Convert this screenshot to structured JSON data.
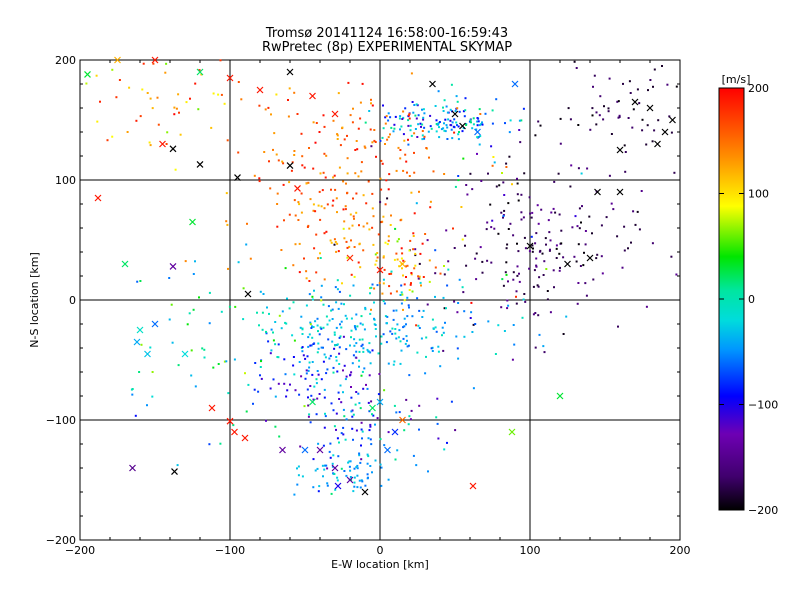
{
  "chart_data": {
    "type": "scatter",
    "title": "Tromsø 20141124 16:58:00-16:59:43",
    "subtitle": "RwPretec (8p) EXPERIMENTAL SKYMAP",
    "xlabel": "E-W location [km]",
    "ylabel": "N-S location [km]",
    "xlim": [
      -200,
      200
    ],
    "ylim": [
      -200,
      200
    ],
    "x_ticks": [
      "-200",
      "-100",
      "0",
      "100",
      "200"
    ],
    "y_ticks": [
      "-200",
      "-100",
      "0",
      "100",
      "200"
    ],
    "grid": true,
    "colorbar": {
      "label": "[m/s]",
      "range": [
        -200,
        200
      ],
      "ticks": [
        "-200",
        "-100",
        "0",
        "100",
        "200"
      ],
      "colormap": "rainbow"
    },
    "clusters": [
      {
        "cx": 40,
        "cy": 148,
        "sx": 22,
        "sy": 10,
        "n": 150,
        "vmin": -120,
        "vmax": 20
      },
      {
        "cx": -20,
        "cy": 130,
        "sx": 35,
        "sy": 25,
        "n": 120,
        "vmin": 120,
        "vmax": 200
      },
      {
        "cx": 110,
        "cy": 40,
        "sx": 35,
        "sy": 35,
        "n": 200,
        "vmin": -200,
        "vmax": -140
      },
      {
        "cx": 150,
        "cy": 150,
        "sx": 25,
        "sy": 20,
        "n": 60,
        "vmin": -200,
        "vmax": -160
      },
      {
        "cx": -30,
        "cy": 70,
        "sx": 30,
        "sy": 25,
        "n": 120,
        "vmin": 110,
        "vmax": 200
      },
      {
        "cx": 10,
        "cy": 30,
        "sx": 18,
        "sy": 15,
        "n": 80,
        "vmin": 60,
        "vmax": 200
      },
      {
        "cx": -10,
        "cy": -25,
        "sx": 40,
        "sy": 20,
        "n": 260,
        "vmin": -70,
        "vmax": 0
      },
      {
        "cx": -40,
        "cy": -65,
        "sx": 20,
        "sy": 20,
        "n": 80,
        "vmin": -130,
        "vmax": -70
      },
      {
        "cx": -25,
        "cy": -145,
        "sx": 15,
        "sy": 10,
        "n": 60,
        "vmin": -60,
        "vmax": -20
      },
      {
        "cx": -10,
        "cy": -110,
        "sx": 25,
        "sy": 20,
        "n": 90,
        "vmin": -150,
        "vmax": 20
      },
      {
        "cx": -140,
        "cy": 170,
        "sx": 40,
        "sy": 20,
        "n": 60,
        "vmin": 60,
        "vmax": 200
      },
      {
        "cx": -80,
        "cy": -40,
        "sx": 40,
        "sy": 40,
        "n": 60,
        "vmin": -40,
        "vmax": 80
      },
      {
        "cx": -130,
        "cy": -60,
        "sx": 40,
        "sy": 60,
        "n": 25,
        "vmin": -100,
        "vmax": 40
      },
      {
        "cx": 60,
        "cy": 60,
        "sx": 40,
        "sy": 40,
        "n": 40,
        "vmin": -200,
        "vmax": 200
      }
    ],
    "markers": [
      {
        "x": -188,
        "y": 85,
        "v": 190
      },
      {
        "x": -170,
        "y": 30,
        "v": 20
      },
      {
        "x": -150,
        "y": -20,
        "v": -60
      },
      {
        "x": -160,
        "y": -25,
        "v": -10
      },
      {
        "x": -162,
        "y": -35,
        "v": -40
      },
      {
        "x": -155,
        "y": -45,
        "v": -30
      },
      {
        "x": -130,
        "y": -45,
        "v": -20
      },
      {
        "x": -165,
        "y": -140,
        "v": -150
      },
      {
        "x": -137,
        "y": -143,
        "v": -200
      },
      {
        "x": -138,
        "y": 28,
        "v": -140
      },
      {
        "x": -125,
        "y": 65,
        "v": 30
      },
      {
        "x": -145,
        "y": 130,
        "v": 190
      },
      {
        "x": -138,
        "y": 126,
        "v": -200
      },
      {
        "x": -120,
        "y": 113,
        "v": -200
      },
      {
        "x": -112,
        "y": -90,
        "v": 190
      },
      {
        "x": -100,
        "y": -101,
        "v": 190
      },
      {
        "x": -97,
        "y": -110,
        "v": 190
      },
      {
        "x": -90,
        "y": -115,
        "v": 190
      },
      {
        "x": -95,
        "y": 102,
        "v": -200
      },
      {
        "x": -60,
        "y": 190,
        "v": -200
      },
      {
        "x": -60,
        "y": 112,
        "v": -200
      },
      {
        "x": -55,
        "y": 93,
        "v": 190
      },
      {
        "x": -88,
        "y": 5,
        "v": -200
      },
      {
        "x": -65,
        "y": -125,
        "v": -140
      },
      {
        "x": -50,
        "y": -125,
        "v": -60
      },
      {
        "x": -45,
        "y": -85,
        "v": 20
      },
      {
        "x": -40,
        "y": -125,
        "v": -140
      },
      {
        "x": -30,
        "y": -140,
        "v": -140
      },
      {
        "x": -28,
        "y": -155,
        "v": -100
      },
      {
        "x": -20,
        "y": -150,
        "v": -140
      },
      {
        "x": -10,
        "y": -160,
        "v": -200
      },
      {
        "x": 5,
        "y": -125,
        "v": -60
      },
      {
        "x": 10,
        "y": -110,
        "v": -80
      },
      {
        "x": 15,
        "y": -100,
        "v": 150
      },
      {
        "x": 0,
        "y": -85,
        "v": -40
      },
      {
        "x": -5,
        "y": -90,
        "v": 20
      },
      {
        "x": 35,
        "y": 180,
        "v": -200
      },
      {
        "x": 50,
        "y": 155,
        "v": -200
      },
      {
        "x": 55,
        "y": 145,
        "v": -200
      },
      {
        "x": 65,
        "y": 140,
        "v": -60
      },
      {
        "x": 90,
        "y": 180,
        "v": -60
      },
      {
        "x": 88,
        "y": -110,
        "v": 60
      },
      {
        "x": 120,
        "y": -80,
        "v": 30
      },
      {
        "x": 62,
        "y": -155,
        "v": 190
      },
      {
        "x": 100,
        "y": 45,
        "v": -200
      },
      {
        "x": 125,
        "y": 30,
        "v": -200
      },
      {
        "x": 140,
        "y": 35,
        "v": -200
      },
      {
        "x": 160,
        "y": 90,
        "v": -200
      },
      {
        "x": 145,
        "y": 90,
        "v": -200
      },
      {
        "x": 180,
        "y": 160,
        "v": -200
      },
      {
        "x": 190,
        "y": 140,
        "v": -200
      },
      {
        "x": 195,
        "y": 150,
        "v": -200
      },
      {
        "x": 185,
        "y": 130,
        "v": -200
      },
      {
        "x": 160,
        "y": 125,
        "v": -200
      },
      {
        "x": 170,
        "y": 165,
        "v": -200
      },
      {
        "x": -20,
        "y": 35,
        "v": 180
      },
      {
        "x": 0,
        "y": 25,
        "v": 190
      },
      {
        "x": 15,
        "y": 30,
        "v": 120
      },
      {
        "x": -45,
        "y": 170,
        "v": 190
      },
      {
        "x": -30,
        "y": 155,
        "v": 190
      },
      {
        "x": -120,
        "y": 190,
        "v": 20
      },
      {
        "x": -100,
        "y": 185,
        "v": 190
      },
      {
        "x": -80,
        "y": 175,
        "v": 190
      },
      {
        "x": -195,
        "y": 188,
        "v": 30
      },
      {
        "x": -175,
        "y": 200,
        "v": 120
      },
      {
        "x": -150,
        "y": 200,
        "v": 190
      }
    ]
  }
}
